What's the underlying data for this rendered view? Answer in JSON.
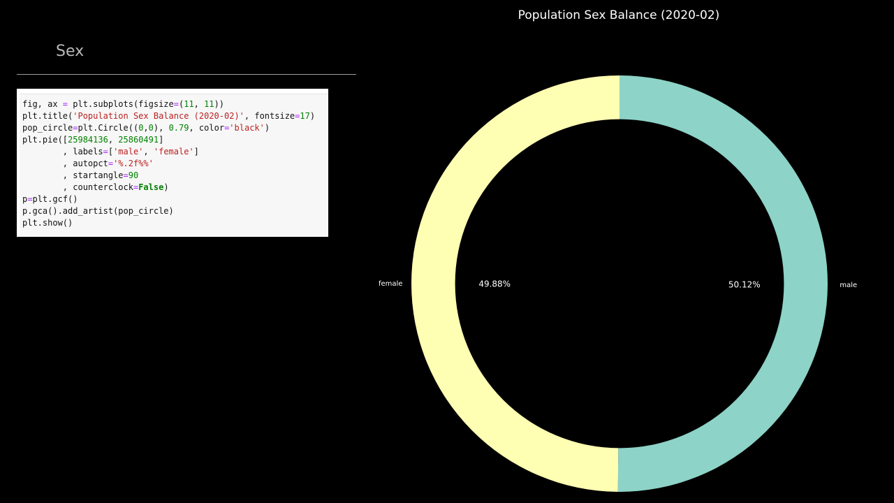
{
  "notebook": {
    "section_heading": "Sex",
    "code_lines": [
      [
        {
          "t": "fig, ax "
        },
        {
          "t": "=",
          "c": "op"
        },
        {
          "t": " plt.subplots(figsize"
        },
        {
          "t": "=",
          "c": "op"
        },
        {
          "t": "("
        },
        {
          "t": "11",
          "c": "num"
        },
        {
          "t": ", "
        },
        {
          "t": "11",
          "c": "num"
        },
        {
          "t": "))"
        }
      ],
      [
        {
          "t": "plt.title("
        },
        {
          "t": "'Population Sex Balance (2020-02)'",
          "c": "str"
        },
        {
          "t": ", fontsize"
        },
        {
          "t": "=",
          "c": "op"
        },
        {
          "t": "17",
          "c": "num"
        },
        {
          "t": ")"
        }
      ],
      [
        {
          "t": "pop_circle"
        },
        {
          "t": "=",
          "c": "op"
        },
        {
          "t": "plt.Circle(("
        },
        {
          "t": "0",
          "c": "num"
        },
        {
          "t": ","
        },
        {
          "t": "0",
          "c": "num"
        },
        {
          "t": "), "
        },
        {
          "t": "0.79",
          "c": "num"
        },
        {
          "t": ", color"
        },
        {
          "t": "=",
          "c": "op"
        },
        {
          "t": "'black'",
          "c": "str"
        },
        {
          "t": ")"
        }
      ],
      [
        {
          "t": "plt.pie(["
        },
        {
          "t": "25984136",
          "c": "num"
        },
        {
          "t": ", "
        },
        {
          "t": "25860491",
          "c": "num"
        },
        {
          "t": "]"
        }
      ],
      [
        {
          "t": "        , labels"
        },
        {
          "t": "=",
          "c": "op"
        },
        {
          "t": "["
        },
        {
          "t": "'male'",
          "c": "str"
        },
        {
          "t": ", "
        },
        {
          "t": "'female'",
          "c": "str"
        },
        {
          "t": "]"
        }
      ],
      [
        {
          "t": "        , autopct"
        },
        {
          "t": "=",
          "c": "op"
        },
        {
          "t": "'%.2f%%'",
          "c": "str"
        }
      ],
      [
        {
          "t": "        , startangle"
        },
        {
          "t": "=",
          "c": "op"
        },
        {
          "t": "90",
          "c": "num"
        }
      ],
      [
        {
          "t": "        , counterclock"
        },
        {
          "t": "=",
          "c": "op"
        },
        {
          "t": "False",
          "c": "kw"
        },
        {
          "t": ")"
        }
      ],
      [
        {
          "t": "p"
        },
        {
          "t": "=",
          "c": "op"
        },
        {
          "t": "plt.gcf()"
        }
      ],
      [
        {
          "t": "p.gca().add_artist(pop_circle)"
        }
      ],
      [
        {
          "t": "plt.show()"
        }
      ]
    ]
  },
  "chart_data": {
    "type": "pie",
    "title": "Population Sex Balance (2020-02)",
    "categories": [
      "male",
      "female"
    ],
    "values": [
      25984136,
      25860491
    ],
    "percent_labels": [
      "50.12%",
      "49.88%"
    ],
    "colors": [
      "#8dd3c7",
      "#ffffb3"
    ],
    "start_angle": 90,
    "counterclock": false,
    "inner_radius_fraction": 0.79,
    "center_color": "#000000",
    "background": "#000000"
  }
}
